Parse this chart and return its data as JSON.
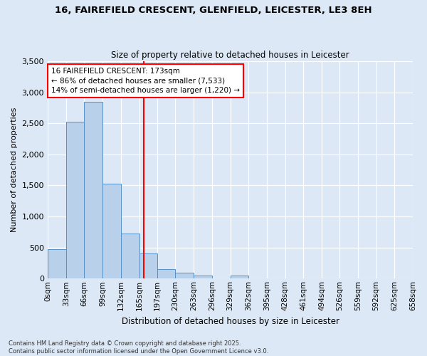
{
  "title_line1": "16, FAIREFIELD CRESCENT, GLENFIELD, LEICESTER, LE3 8EH",
  "title_line2": "Size of property relative to detached houses in Leicester",
  "xlabel": "Distribution of detached houses by size in Leicester",
  "ylabel": "Number of detached properties",
  "bar_color": "#b8d0ea",
  "bar_edge_color": "#5590c8",
  "background_color": "#dce8f5",
  "grid_color": "#ffffff",
  "bin_edges": [
    0,
    33,
    66,
    99,
    132,
    165,
    197,
    230,
    263,
    296,
    329,
    362,
    395,
    428,
    461,
    494,
    526,
    559,
    592,
    625,
    658
  ],
  "bin_labels": [
    "0sqm",
    "33sqm",
    "66sqm",
    "99sqm",
    "132sqm",
    "165sqm",
    "197sqm",
    "230sqm",
    "263sqm",
    "296sqm",
    "329sqm",
    "362sqm",
    "395sqm",
    "428sqm",
    "461sqm",
    "494sqm",
    "526sqm",
    "559sqm",
    "592sqm",
    "625sqm",
    "658sqm"
  ],
  "bar_heights": [
    470,
    2530,
    2850,
    1530,
    720,
    400,
    155,
    90,
    45,
    0,
    50,
    0,
    0,
    0,
    0,
    0,
    0,
    0,
    0,
    0
  ],
  "property_size": 173,
  "annotation_line1": "16 FAIREFIELD CRESCENT: 173sqm",
  "annotation_line2": "← 86% of detached houses are smaller (7,533)",
  "annotation_line3": "14% of semi-detached houses are larger (1,220) →",
  "ylim": [
    0,
    3500
  ],
  "yticks": [
    0,
    500,
    1000,
    1500,
    2000,
    2500,
    3000,
    3500
  ],
  "footnote1": "Contains HM Land Registry data © Crown copyright and database right 2025.",
  "footnote2": "Contains public sector information licensed under the Open Government Licence v3.0."
}
